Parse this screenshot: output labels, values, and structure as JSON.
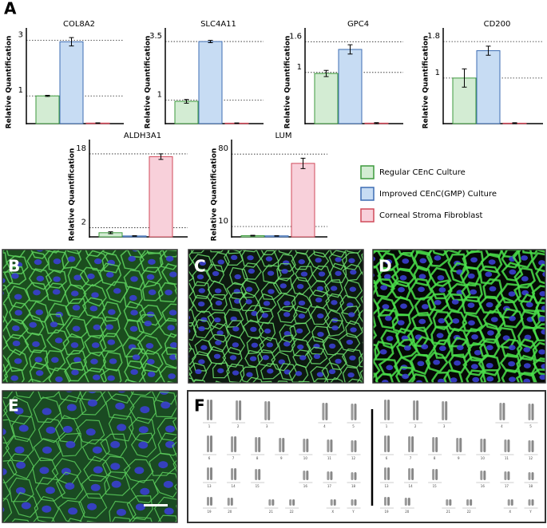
{
  "panel_labels": [
    "A",
    "B",
    "C",
    "D",
    "E",
    "F"
  ],
  "legend": [
    {
      "name": "Regular CEnC Culture",
      "color": "#d3ecd3",
      "edge": "#3d9a3d"
    },
    {
      "name": "Improved CEnC(GMP) Culture",
      "color": "#c7dcf3",
      "edge": "#3d6db3"
    },
    {
      "name": "Corneal Stroma Fibroblast",
      "color": "#f8d0da",
      "edge": "#d04a5a"
    }
  ],
  "chart_data": [
    {
      "type": "bar",
      "title": "COL8A2",
      "y_label": "Relative Quantification",
      "values": [
        1,
        2.95,
        0.02
      ],
      "errors": [
        0.02,
        0.15,
        0.01
      ],
      "ylim": [
        0,
        3.45
      ],
      "yticks": [
        1,
        3
      ]
    },
    {
      "type": "bar",
      "title": "SLC4A11",
      "y_label": "Relative Quantification",
      "values": [
        0.95,
        3.5,
        0.02
      ],
      "errors": [
        0.08,
        0.05,
        0.01
      ],
      "ylim": [
        0,
        4.08
      ],
      "yticks": [
        1,
        3.5
      ]
    },
    {
      "type": "bar",
      "title": "GPC4",
      "y_label": "Relative Quantification",
      "values": [
        0.98,
        1.45,
        0.01
      ],
      "errors": [
        0.06,
        0.09,
        0.01
      ],
      "ylim": [
        0,
        1.87
      ],
      "yticks": [
        1,
        1.6
      ]
    },
    {
      "type": "bar",
      "title": "CD200",
      "y_label": "Relative Quantification",
      "values": [
        1.0,
        1.6,
        0.01
      ],
      "errors": [
        0.2,
        0.1,
        0.01
      ],
      "ylim": [
        0,
        2.1
      ],
      "yticks": [
        1,
        1.8
      ]
    },
    {
      "type": "bar",
      "title": "ALDH3A1",
      "y_label": "Relative Quantification",
      "values": [
        0.9,
        0.2,
        17.4
      ],
      "errors": [
        0.2,
        0.05,
        0.6
      ],
      "ylim": [
        0,
        21.1
      ],
      "yticks": [
        2,
        18
      ]
    },
    {
      "type": "bar",
      "title": "LUM",
      "y_label": "Relative Quantification",
      "values": [
        1.2,
        1.0,
        71
      ],
      "errors": [
        0.3,
        0.2,
        5
      ],
      "ylim": [
        0,
        94
      ],
      "yticks": [
        10,
        80
      ]
    }
  ],
  "karyotype_labels": [
    "1",
    "2",
    "3",
    "4",
    "5",
    "6",
    "7",
    "8",
    "9",
    "10",
    "11",
    "12",
    "13",
    "14",
    "15",
    "16",
    "17",
    "18",
    "19",
    "20",
    "21",
    "22",
    "X",
    "Y"
  ]
}
